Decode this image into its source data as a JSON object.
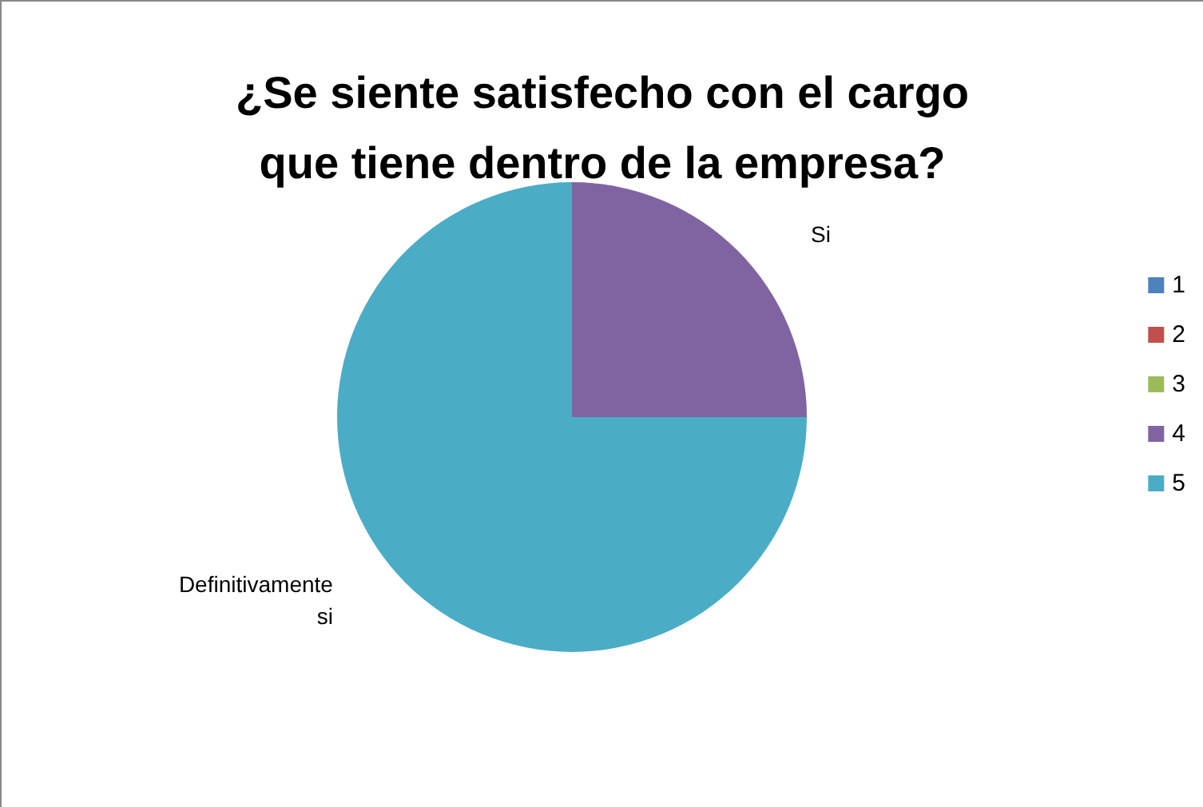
{
  "chart_data": {
    "type": "pie",
    "title": "¿Se siente satisfecho con el cargo\nque tiene dentro de la empresa?",
    "categories": [
      "1",
      "2",
      "3",
      "4",
      "5"
    ],
    "values": [
      0,
      0,
      0,
      25,
      75
    ],
    "colors": [
      "#4f81bd",
      "#c0504d",
      "#9bbb59",
      "#8064a2",
      "#4bacc6"
    ],
    "value_labels": [
      null,
      null,
      null,
      "Si",
      "Definitivamente\nsi"
    ],
    "legend": "right"
  }
}
